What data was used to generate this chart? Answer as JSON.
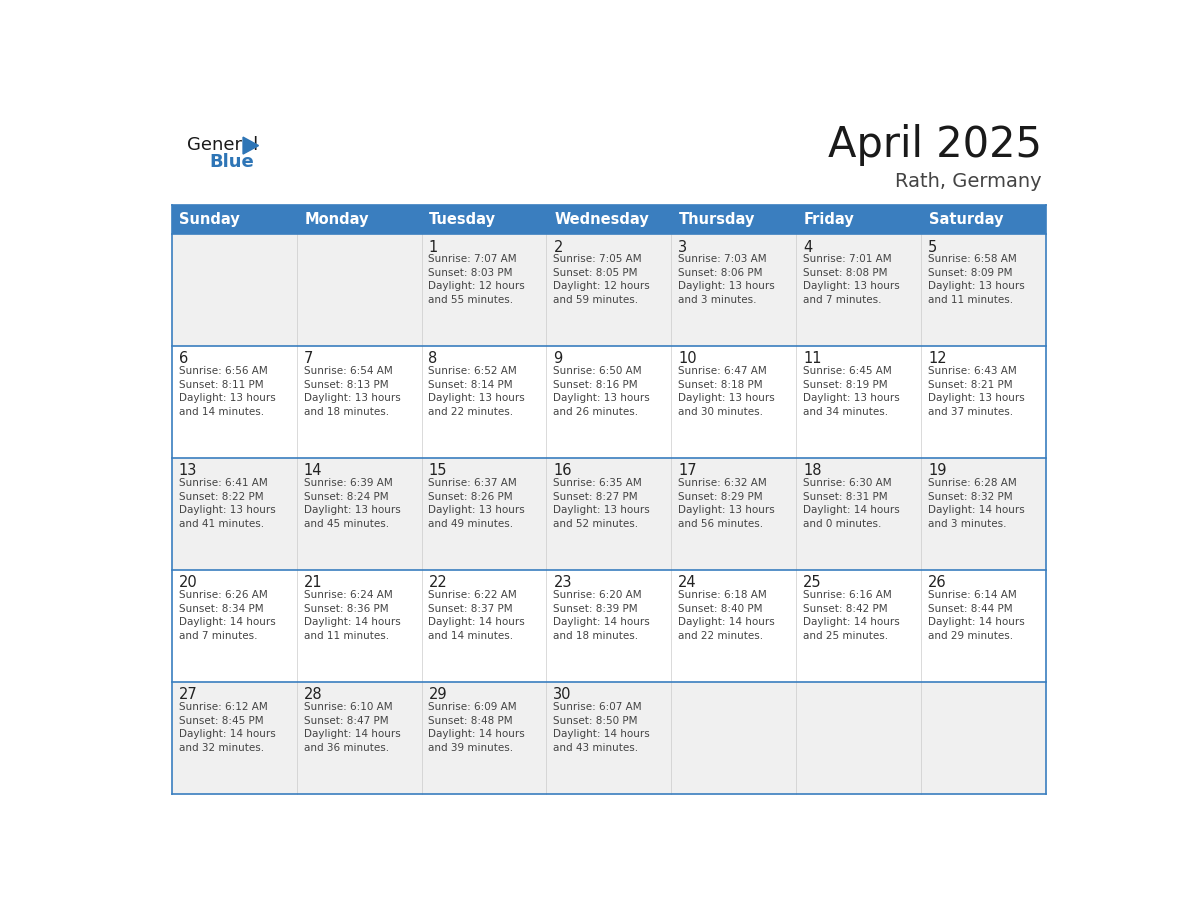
{
  "title": "April 2025",
  "subtitle": "Rath, Germany",
  "header_bg": "#3a7ebf",
  "header_text": "#ffffff",
  "days_of_week": [
    "Sunday",
    "Monday",
    "Tuesday",
    "Wednesday",
    "Thursday",
    "Friday",
    "Saturday"
  ],
  "row_bg_odd": "#f0f0f0",
  "row_bg_even": "#ffffff",
  "cell_text_color": "#333333",
  "day_num_color": "#222222",
  "row_divider_color": "#3a7ebf",
  "calendar": [
    [
      {
        "day": null,
        "info": null
      },
      {
        "day": null,
        "info": null
      },
      {
        "day": 1,
        "info": "Sunrise: 7:07 AM\nSunset: 8:03 PM\nDaylight: 12 hours\nand 55 minutes."
      },
      {
        "day": 2,
        "info": "Sunrise: 7:05 AM\nSunset: 8:05 PM\nDaylight: 12 hours\nand 59 minutes."
      },
      {
        "day": 3,
        "info": "Sunrise: 7:03 AM\nSunset: 8:06 PM\nDaylight: 13 hours\nand 3 minutes."
      },
      {
        "day": 4,
        "info": "Sunrise: 7:01 AM\nSunset: 8:08 PM\nDaylight: 13 hours\nand 7 minutes."
      },
      {
        "day": 5,
        "info": "Sunrise: 6:58 AM\nSunset: 8:09 PM\nDaylight: 13 hours\nand 11 minutes."
      }
    ],
    [
      {
        "day": 6,
        "info": "Sunrise: 6:56 AM\nSunset: 8:11 PM\nDaylight: 13 hours\nand 14 minutes."
      },
      {
        "day": 7,
        "info": "Sunrise: 6:54 AM\nSunset: 8:13 PM\nDaylight: 13 hours\nand 18 minutes."
      },
      {
        "day": 8,
        "info": "Sunrise: 6:52 AM\nSunset: 8:14 PM\nDaylight: 13 hours\nand 22 minutes."
      },
      {
        "day": 9,
        "info": "Sunrise: 6:50 AM\nSunset: 8:16 PM\nDaylight: 13 hours\nand 26 minutes."
      },
      {
        "day": 10,
        "info": "Sunrise: 6:47 AM\nSunset: 8:18 PM\nDaylight: 13 hours\nand 30 minutes."
      },
      {
        "day": 11,
        "info": "Sunrise: 6:45 AM\nSunset: 8:19 PM\nDaylight: 13 hours\nand 34 minutes."
      },
      {
        "day": 12,
        "info": "Sunrise: 6:43 AM\nSunset: 8:21 PM\nDaylight: 13 hours\nand 37 minutes."
      }
    ],
    [
      {
        "day": 13,
        "info": "Sunrise: 6:41 AM\nSunset: 8:22 PM\nDaylight: 13 hours\nand 41 minutes."
      },
      {
        "day": 14,
        "info": "Sunrise: 6:39 AM\nSunset: 8:24 PM\nDaylight: 13 hours\nand 45 minutes."
      },
      {
        "day": 15,
        "info": "Sunrise: 6:37 AM\nSunset: 8:26 PM\nDaylight: 13 hours\nand 49 minutes."
      },
      {
        "day": 16,
        "info": "Sunrise: 6:35 AM\nSunset: 8:27 PM\nDaylight: 13 hours\nand 52 minutes."
      },
      {
        "day": 17,
        "info": "Sunrise: 6:32 AM\nSunset: 8:29 PM\nDaylight: 13 hours\nand 56 minutes."
      },
      {
        "day": 18,
        "info": "Sunrise: 6:30 AM\nSunset: 8:31 PM\nDaylight: 14 hours\nand 0 minutes."
      },
      {
        "day": 19,
        "info": "Sunrise: 6:28 AM\nSunset: 8:32 PM\nDaylight: 14 hours\nand 3 minutes."
      }
    ],
    [
      {
        "day": 20,
        "info": "Sunrise: 6:26 AM\nSunset: 8:34 PM\nDaylight: 14 hours\nand 7 minutes."
      },
      {
        "day": 21,
        "info": "Sunrise: 6:24 AM\nSunset: 8:36 PM\nDaylight: 14 hours\nand 11 minutes."
      },
      {
        "day": 22,
        "info": "Sunrise: 6:22 AM\nSunset: 8:37 PM\nDaylight: 14 hours\nand 14 minutes."
      },
      {
        "day": 23,
        "info": "Sunrise: 6:20 AM\nSunset: 8:39 PM\nDaylight: 14 hours\nand 18 minutes."
      },
      {
        "day": 24,
        "info": "Sunrise: 6:18 AM\nSunset: 8:40 PM\nDaylight: 14 hours\nand 22 minutes."
      },
      {
        "day": 25,
        "info": "Sunrise: 6:16 AM\nSunset: 8:42 PM\nDaylight: 14 hours\nand 25 minutes."
      },
      {
        "day": 26,
        "info": "Sunrise: 6:14 AM\nSunset: 8:44 PM\nDaylight: 14 hours\nand 29 minutes."
      }
    ],
    [
      {
        "day": 27,
        "info": "Sunrise: 6:12 AM\nSunset: 8:45 PM\nDaylight: 14 hours\nand 32 minutes."
      },
      {
        "day": 28,
        "info": "Sunrise: 6:10 AM\nSunset: 8:47 PM\nDaylight: 14 hours\nand 36 minutes."
      },
      {
        "day": 29,
        "info": "Sunrise: 6:09 AM\nSunset: 8:48 PM\nDaylight: 14 hours\nand 39 minutes."
      },
      {
        "day": 30,
        "info": "Sunrise: 6:07 AM\nSunset: 8:50 PM\nDaylight: 14 hours\nand 43 minutes."
      },
      {
        "day": null,
        "info": null
      },
      {
        "day": null,
        "info": null
      },
      {
        "day": null,
        "info": null
      }
    ]
  ]
}
